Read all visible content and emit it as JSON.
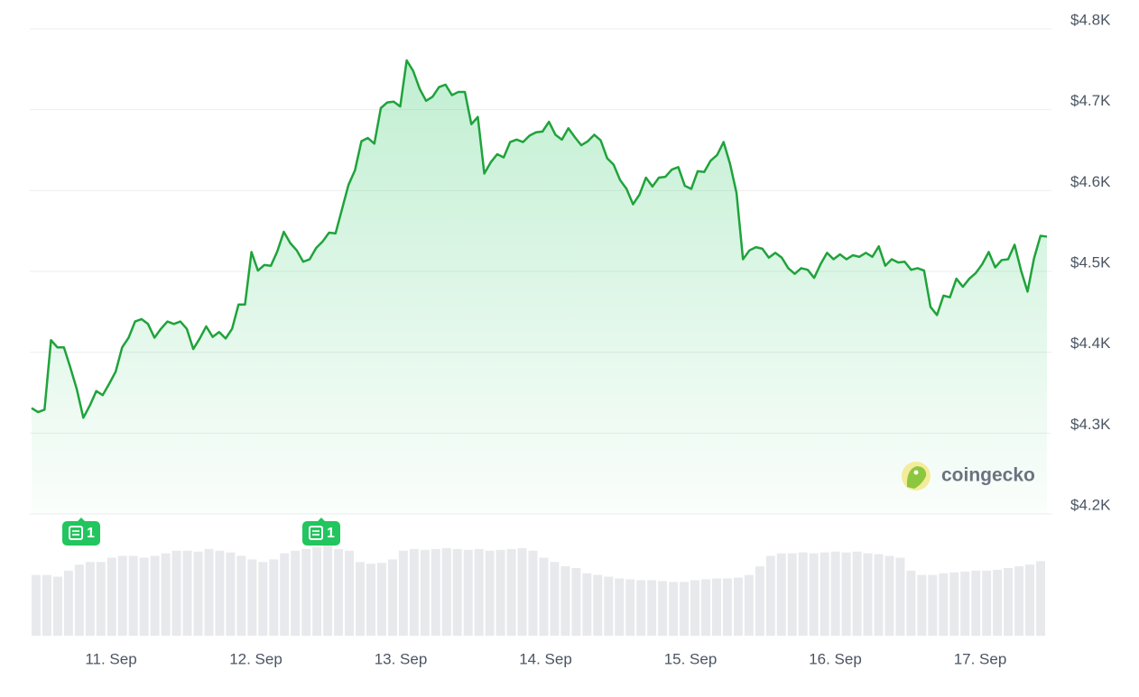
{
  "chart_data": {
    "type": "line",
    "watermark": "coingecko",
    "x_labels": [
      "11. Sep",
      "12. Sep",
      "13. Sep",
      "14. Sep",
      "15. Sep",
      "16. Sep",
      "17. Sep"
    ],
    "ylim": [
      4200,
      4800
    ],
    "yticks": [
      {
        "value": 4200,
        "label": "$4.2K"
      },
      {
        "value": 4300,
        "label": "$4.3K"
      },
      {
        "value": 4400,
        "label": "$4.4K"
      },
      {
        "value": 4500,
        "label": "$4.5K"
      },
      {
        "value": 4600,
        "label": "$4.6K"
      },
      {
        "value": 4700,
        "label": "$4.7K"
      },
      {
        "value": 4800,
        "label": "$4.8K"
      }
    ],
    "grid": true,
    "series": [
      {
        "color": "#1fa33b",
        "values": [
          4331,
          4326,
          4329,
          4415,
          4406,
          4406,
          4381,
          4354,
          4319,
          4334,
          4352,
          4347,
          4361,
          4376,
          4406,
          4418,
          4438,
          4441,
          4435,
          4418,
          4429,
          4438,
          4435,
          4438,
          4429,
          4404,
          4417,
          4432,
          4419,
          4425,
          4417,
          4429,
          4459,
          4459,
          4524,
          4501,
          4508,
          4507,
          4525,
          4549,
          4535,
          4526,
          4512,
          4515,
          4529,
          4537,
          4548,
          4547,
          4577,
          4607,
          4625,
          4661,
          4665,
          4658,
          4702,
          4709,
          4710,
          4704,
          4761,
          4748,
          4726,
          4711,
          4716,
          4728,
          4731,
          4718,
          4722,
          4722,
          4682,
          4691,
          4621,
          4635,
          4645,
          4641,
          4660,
          4663,
          4660,
          4668,
          4672,
          4673,
          4685,
          4669,
          4663,
          4677,
          4666,
          4656,
          4661,
          4669,
          4662,
          4640,
          4632,
          4613,
          4602,
          4583,
          4595,
          4616,
          4605,
          4616,
          4617,
          4626,
          4629,
          4606,
          4602,
          4624,
          4623,
          4637,
          4644,
          4660,
          4633,
          4597,
          4515,
          4526,
          4530,
          4528,
          4517,
          4523,
          4517,
          4504,
          4497,
          4504,
          4502,
          4492,
          4509,
          4523,
          4515,
          4521,
          4515,
          4520,
          4518,
          4523,
          4518,
          4531,
          4507,
          4515,
          4511,
          4512,
          4502,
          4504,
          4501,
          4456,
          4446,
          4470,
          4468,
          4491,
          4481,
          4491,
          4498,
          4509,
          4524,
          4505,
          4514,
          4515,
          4533,
          4501,
          4475,
          4516,
          4544,
          4543
        ]
      }
    ],
    "volume": {
      "color": "#e8e9ec",
      "values": [
        70,
        70,
        68,
        75,
        82,
        85,
        85,
        90,
        92,
        92,
        90,
        92,
        95,
        98,
        98,
        97,
        100,
        98,
        96,
        92,
        88,
        85,
        88,
        95,
        98,
        100,
        102,
        104,
        100,
        98,
        85,
        83,
        84,
        88,
        98,
        100,
        99,
        100,
        101,
        100,
        99,
        100,
        98,
        99,
        100,
        101,
        98,
        90,
        85,
        80,
        78,
        72,
        70,
        68,
        66,
        65,
        64,
        64,
        63,
        62,
        62,
        64,
        65,
        66,
        66,
        67,
        70,
        80,
        92,
        95,
        95,
        96,
        95,
        96,
        97,
        96,
        97,
        95,
        94,
        92,
        90,
        75,
        70,
        70,
        72,
        73,
        74,
        75,
        75,
        76,
        78,
        80,
        82,
        86
      ]
    },
    "news_markers": [
      1,
      1
    ]
  }
}
